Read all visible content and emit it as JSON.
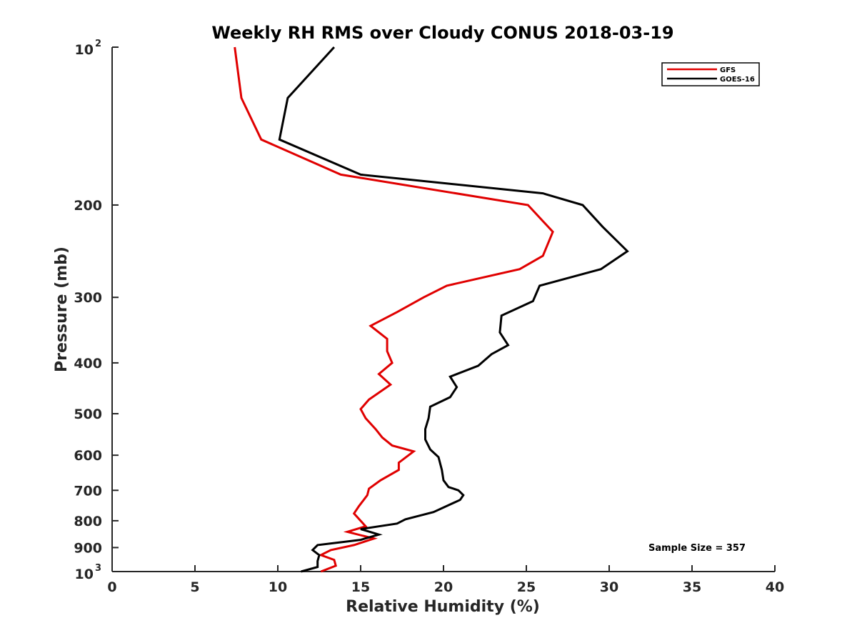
{
  "chart_data": {
    "type": "line",
    "title": "Weekly RH RMS over Cloudy CONUS 2018-03-19",
    "xlabel": "Relative Humidity (%)",
    "ylabel": "Pressure (mb)",
    "xlim": [
      0,
      40
    ],
    "ylim": [
      100,
      1000
    ],
    "y_scale": "log",
    "y_reversed": true,
    "grid": false,
    "legend_position": "top-right",
    "annotation": "Sample Size = 357",
    "x_ticks": [
      {
        "value": 0,
        "label": "0"
      },
      {
        "value": 5,
        "label": "5"
      },
      {
        "value": 10,
        "label": "10"
      },
      {
        "value": 15,
        "label": "15"
      },
      {
        "value": 20,
        "label": "20"
      },
      {
        "value": 25,
        "label": "25"
      },
      {
        "value": 30,
        "label": "30"
      },
      {
        "value": 35,
        "label": "35"
      },
      {
        "value": 40,
        "label": "40"
      }
    ],
    "y_ticks": [
      {
        "value": 100,
        "label": "10",
        "exponent": "2"
      },
      {
        "value": 200,
        "label": "200"
      },
      {
        "value": 300,
        "label": "300"
      },
      {
        "value": 400,
        "label": "400"
      },
      {
        "value": 500,
        "label": "500"
      },
      {
        "value": 600,
        "label": "600"
      },
      {
        "value": 700,
        "label": "700"
      },
      {
        "value": 800,
        "label": "800"
      },
      {
        "value": 900,
        "label": "900"
      },
      {
        "value": 1000,
        "label": "10",
        "exponent": "3"
      }
    ],
    "series": [
      {
        "name": "GFS",
        "color": "#e00000",
        "points": [
          {
            "rh": 7.4,
            "p": 100
          },
          {
            "rh": 7.8,
            "p": 125
          },
          {
            "rh": 9.0,
            "p": 150
          },
          {
            "rh": 13.8,
            "p": 175
          },
          {
            "rh": 25.1,
            "p": 200
          },
          {
            "rh": 26.6,
            "p": 225
          },
          {
            "rh": 26.0,
            "p": 250
          },
          {
            "rh": 24.6,
            "p": 265
          },
          {
            "rh": 20.2,
            "p": 285
          },
          {
            "rh": 18.8,
            "p": 300
          },
          {
            "rh": 17.2,
            "p": 320
          },
          {
            "rh": 15.6,
            "p": 340
          },
          {
            "rh": 16.6,
            "p": 360
          },
          {
            "rh": 16.6,
            "p": 380
          },
          {
            "rh": 16.9,
            "p": 400
          },
          {
            "rh": 16.1,
            "p": 420
          },
          {
            "rh": 16.8,
            "p": 440
          },
          {
            "rh": 15.5,
            "p": 470
          },
          {
            "rh": 15.0,
            "p": 490
          },
          {
            "rh": 15.3,
            "p": 510
          },
          {
            "rh": 15.9,
            "p": 535
          },
          {
            "rh": 16.3,
            "p": 555
          },
          {
            "rh": 16.9,
            "p": 575
          },
          {
            "rh": 18.2,
            "p": 590
          },
          {
            "rh": 17.3,
            "p": 620
          },
          {
            "rh": 17.3,
            "p": 640
          },
          {
            "rh": 16.2,
            "p": 670
          },
          {
            "rh": 15.5,
            "p": 695
          },
          {
            "rh": 15.4,
            "p": 715
          },
          {
            "rh": 14.9,
            "p": 750
          },
          {
            "rh": 14.6,
            "p": 775
          },
          {
            "rh": 15.3,
            "p": 820
          },
          {
            "rh": 14.2,
            "p": 840
          },
          {
            "rh": 15.8,
            "p": 865
          },
          {
            "rh": 14.6,
            "p": 890
          },
          {
            "rh": 13.2,
            "p": 910
          },
          {
            "rh": 12.6,
            "p": 930
          },
          {
            "rh": 13.4,
            "p": 950
          },
          {
            "rh": 13.5,
            "p": 975
          },
          {
            "rh": 12.6,
            "p": 1000
          }
        ]
      },
      {
        "name": "GOES-16",
        "color": "#000000",
        "points": [
          {
            "rh": 13.4,
            "p": 100
          },
          {
            "rh": 10.6,
            "p": 125
          },
          {
            "rh": 10.1,
            "p": 150
          },
          {
            "rh": 15.0,
            "p": 175
          },
          {
            "rh": 26.0,
            "p": 190
          },
          {
            "rh": 28.4,
            "p": 200
          },
          {
            "rh": 29.6,
            "p": 220
          },
          {
            "rh": 31.1,
            "p": 245
          },
          {
            "rh": 29.5,
            "p": 265
          },
          {
            "rh": 25.8,
            "p": 285
          },
          {
            "rh": 25.4,
            "p": 305
          },
          {
            "rh": 23.5,
            "p": 325
          },
          {
            "rh": 23.4,
            "p": 350
          },
          {
            "rh": 23.9,
            "p": 370
          },
          {
            "rh": 22.9,
            "p": 385
          },
          {
            "rh": 22.1,
            "p": 405
          },
          {
            "rh": 20.4,
            "p": 425
          },
          {
            "rh": 20.8,
            "p": 445
          },
          {
            "rh": 20.4,
            "p": 465
          },
          {
            "rh": 19.2,
            "p": 485
          },
          {
            "rh": 19.1,
            "p": 510
          },
          {
            "rh": 18.9,
            "p": 535
          },
          {
            "rh": 18.9,
            "p": 560
          },
          {
            "rh": 19.2,
            "p": 585
          },
          {
            "rh": 19.7,
            "p": 605
          },
          {
            "rh": 19.9,
            "p": 640
          },
          {
            "rh": 20.0,
            "p": 670
          },
          {
            "rh": 20.3,
            "p": 690
          },
          {
            "rh": 20.9,
            "p": 700
          },
          {
            "rh": 21.2,
            "p": 715
          },
          {
            "rh": 21.0,
            "p": 730
          },
          {
            "rh": 19.4,
            "p": 770
          },
          {
            "rh": 17.7,
            "p": 795
          },
          {
            "rh": 17.2,
            "p": 810
          },
          {
            "rh": 15.0,
            "p": 830
          },
          {
            "rh": 16.1,
            "p": 850
          },
          {
            "rh": 15.0,
            "p": 870
          },
          {
            "rh": 12.4,
            "p": 890
          },
          {
            "rh": 12.1,
            "p": 910
          },
          {
            "rh": 12.5,
            "p": 930
          },
          {
            "rh": 12.4,
            "p": 955
          },
          {
            "rh": 12.4,
            "p": 980
          },
          {
            "rh": 11.4,
            "p": 1000
          }
        ]
      }
    ]
  }
}
